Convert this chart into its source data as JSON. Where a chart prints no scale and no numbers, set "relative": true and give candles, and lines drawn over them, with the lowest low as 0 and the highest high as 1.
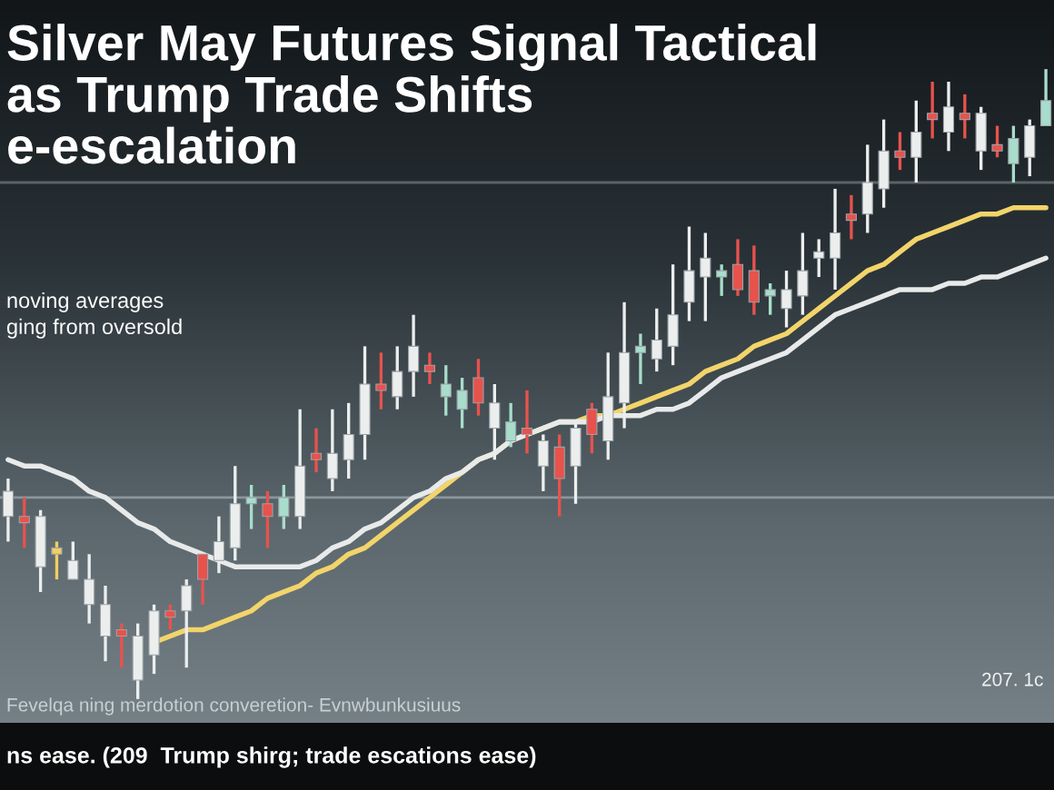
{
  "chart_data": {
    "type": "candlestick",
    "title": "Silver May Futures Signal Tactical\nas Trump Trade Shifts\ne-escalation",
    "subtitle": "noving averages\nging from oversold",
    "annotations": [
      "207. 1c",
      "Fevelqa ning merdotion converetion- Evnwbunkusiuus",
      "ns ease. (209  Trump shirg; trade escations ease)"
    ],
    "relative": true,
    "categories": [
      null,
      null,
      null,
      null,
      null,
      null,
      null,
      null,
      null,
      null,
      null,
      null,
      null,
      null,
      null,
      null,
      null,
      null,
      null,
      null,
      null,
      null,
      null,
      null,
      null,
      null,
      null,
      null,
      null,
      null,
      null,
      null,
      null,
      null,
      null,
      null,
      null,
      null,
      null,
      null,
      null,
      null,
      null,
      null,
      null,
      null,
      null,
      null,
      null,
      null,
      null,
      null,
      null,
      null,
      null,
      null,
      null,
      null,
      null,
      null,
      null,
      null,
      null,
      null,
      null
    ],
    "ohlc": [
      [
        0.29,
        0.35,
        0.25,
        0.33
      ],
      [
        0.29,
        0.32,
        0.24,
        0.28
      ],
      [
        0.21,
        0.3,
        0.17,
        0.29
      ],
      [
        0.24,
        0.25,
        0.19,
        0.23
      ],
      [
        0.19,
        0.25,
        0.19,
        0.22
      ],
      [
        0.15,
        0.23,
        0.12,
        0.19
      ],
      [
        0.1,
        0.18,
        0.06,
        0.15
      ],
      [
        0.11,
        0.12,
        0.05,
        0.1
      ],
      [
        0.03,
        0.12,
        0.0,
        0.1
      ],
      [
        0.07,
        0.15,
        0.04,
        0.14
      ],
      [
        0.14,
        0.15,
        0.11,
        0.13
      ],
      [
        0.14,
        0.19,
        0.05,
        0.18
      ],
      [
        0.23,
        0.23,
        0.15,
        0.19
      ],
      [
        0.22,
        0.29,
        0.2,
        0.25
      ],
      [
        0.24,
        0.37,
        0.22,
        0.31
      ],
      [
        0.31,
        0.34,
        0.27,
        0.32
      ],
      [
        0.31,
        0.33,
        0.24,
        0.29
      ],
      [
        0.29,
        0.34,
        0.27,
        0.32
      ],
      [
        0.29,
        0.46,
        0.27,
        0.37
      ],
      [
        0.39,
        0.43,
        0.36,
        0.38
      ],
      [
        0.35,
        0.46,
        0.33,
        0.39
      ],
      [
        0.38,
        0.47,
        0.35,
        0.42
      ],
      [
        0.42,
        0.56,
        0.38,
        0.5
      ],
      [
        0.5,
        0.55,
        0.46,
        0.49
      ],
      [
        0.48,
        0.56,
        0.46,
        0.52
      ],
      [
        0.52,
        0.61,
        0.48,
        0.56
      ],
      [
        0.53,
        0.55,
        0.5,
        0.52
      ],
      [
        0.48,
        0.53,
        0.45,
        0.5
      ],
      [
        0.46,
        0.51,
        0.43,
        0.49
      ],
      [
        0.51,
        0.54,
        0.45,
        0.47
      ],
      [
        0.43,
        0.5,
        0.38,
        0.47
      ],
      [
        0.41,
        0.47,
        0.4,
        0.44
      ],
      [
        0.43,
        0.49,
        0.39,
        0.42
      ],
      [
        0.37,
        0.42,
        0.33,
        0.41
      ],
      [
        0.4,
        0.42,
        0.29,
        0.35
      ],
      [
        0.37,
        0.44,
        0.31,
        0.43
      ],
      [
        0.46,
        0.47,
        0.39,
        0.42
      ],
      [
        0.41,
        0.55,
        0.38,
        0.48
      ],
      [
        0.47,
        0.63,
        0.43,
        0.55
      ],
      [
        0.55,
        0.58,
        0.5,
        0.56
      ],
      [
        0.54,
        0.62,
        0.52,
        0.57
      ],
      [
        0.56,
        0.69,
        0.53,
        0.61
      ],
      [
        0.63,
        0.75,
        0.6,
        0.68
      ],
      [
        0.67,
        0.74,
        0.6,
        0.7
      ],
      [
        0.67,
        0.69,
        0.64,
        0.68
      ],
      [
        0.69,
        0.73,
        0.64,
        0.65
      ],
      [
        0.68,
        0.72,
        0.61,
        0.63
      ],
      [
        0.64,
        0.66,
        0.61,
        0.65
      ],
      [
        0.62,
        0.68,
        0.59,
        0.65
      ],
      [
        0.64,
        0.74,
        0.61,
        0.68
      ],
      [
        0.7,
        0.73,
        0.67,
        0.71
      ],
      [
        0.7,
        0.81,
        0.65,
        0.74
      ],
      [
        0.77,
        0.8,
        0.73,
        0.76
      ],
      [
        0.77,
        0.88,
        0.74,
        0.82
      ],
      [
        0.81,
        0.92,
        0.78,
        0.87
      ],
      [
        0.87,
        0.9,
        0.84,
        0.86
      ],
      [
        0.86,
        0.95,
        0.82,
        0.9
      ],
      [
        0.93,
        0.98,
        0.89,
        0.92
      ],
      [
        0.9,
        0.98,
        0.87,
        0.94
      ],
      [
        0.93,
        0.96,
        0.89,
        0.92
      ],
      [
        0.87,
        0.94,
        0.84,
        0.93
      ],
      [
        0.88,
        0.91,
        0.86,
        0.87
      ],
      [
        0.85,
        0.91,
        0.82,
        0.89
      ],
      [
        0.86,
        0.92,
        0.83,
        0.91
      ],
      [
        0.91,
        1.0,
        0.91,
        0.95
      ]
    ],
    "colors": [
      "#eceeee",
      "#e8524d",
      "#eceeee",
      "#f0d060",
      "#eceeee",
      "#eceeee",
      "#eceeee",
      "#e8524d",
      "#eceeee",
      "#eceeee",
      "#e8524d",
      "#eceeee",
      "#e8524d",
      "#eceeee",
      "#eceeee",
      "#a8dccb",
      "#e8524d",
      "#a8dccb",
      "#eceeee",
      "#e8524d",
      "#eceeee",
      "#eceeee",
      "#eceeee",
      "#e8524d",
      "#eceeee",
      "#eceeee",
      "#e8524d",
      "#a8dccb",
      "#a8dccb",
      "#e8524d",
      "#eceeee",
      "#a8dccb",
      "#e8524d",
      "#eceeee",
      "#e8524d",
      "#eceeee",
      "#e8524d",
      "#eceeee",
      "#eceeee",
      "#a8dccb",
      "#eceeee",
      "#eceeee",
      "#eceeee",
      "#eceeee",
      "#a8dccb",
      "#e8524d",
      "#e8524d",
      "#a8dccb",
      "#eceeee",
      "#eceeee",
      "#eceeee",
      "#eceeee",
      "#e8524d",
      "#eceeee",
      "#eceeee",
      "#e8524d",
      "#eceeee",
      "#e8524d",
      "#eceeee",
      "#e8524d",
      "#eceeee",
      "#e8524d",
      "#a8dccb",
      "#eceeee",
      "#a8dccb"
    ],
    "series": [
      {
        "type": "line",
        "color": "#f2d46a",
        "values": [
          null,
          null,
          null,
          null,
          null,
          null,
          null,
          null,
          null,
          0.09,
          0.1,
          0.11,
          0.11,
          0.12,
          0.13,
          0.14,
          0.16,
          0.17,
          0.18,
          0.2,
          0.21,
          0.23,
          0.24,
          0.26,
          0.28,
          0.3,
          0.32,
          0.34,
          0.36,
          0.38,
          0.39,
          0.41,
          0.42,
          0.43,
          0.44,
          0.44,
          0.45,
          0.45,
          0.46,
          0.47,
          0.48,
          0.49,
          0.5,
          0.52,
          0.53,
          0.54,
          0.56,
          0.57,
          0.58,
          0.6,
          0.62,
          0.64,
          0.66,
          0.68,
          0.69,
          0.71,
          0.73,
          0.74,
          0.75,
          0.76,
          0.77,
          0.77,
          0.78,
          0.78,
          0.78
        ]
      },
      {
        "type": "line",
        "color": "#e8eaea",
        "values": [
          0.38,
          0.37,
          0.37,
          0.36,
          0.35,
          0.33,
          0.32,
          0.3,
          0.28,
          0.27,
          0.25,
          0.24,
          0.23,
          0.22,
          0.21,
          0.21,
          0.21,
          0.21,
          0.21,
          0.22,
          0.24,
          0.25,
          0.27,
          0.28,
          0.3,
          0.32,
          0.33,
          0.35,
          0.36,
          0.38,
          0.39,
          0.41,
          0.42,
          0.43,
          0.44,
          0.44,
          0.44,
          0.45,
          0.45,
          0.45,
          0.46,
          0.46,
          0.47,
          0.49,
          0.51,
          0.52,
          0.53,
          0.54,
          0.55,
          0.57,
          0.59,
          0.61,
          0.62,
          0.63,
          0.64,
          0.65,
          0.65,
          0.65,
          0.66,
          0.66,
          0.67,
          0.67,
          0.68,
          0.69,
          0.7
        ]
      }
    ],
    "ref_lines": [
      {
        "axis": "y",
        "value": 0.32,
        "color": "#8a969c"
      },
      {
        "axis": "y",
        "value": 0.82,
        "color": "#5a6468"
      }
    ]
  }
}
